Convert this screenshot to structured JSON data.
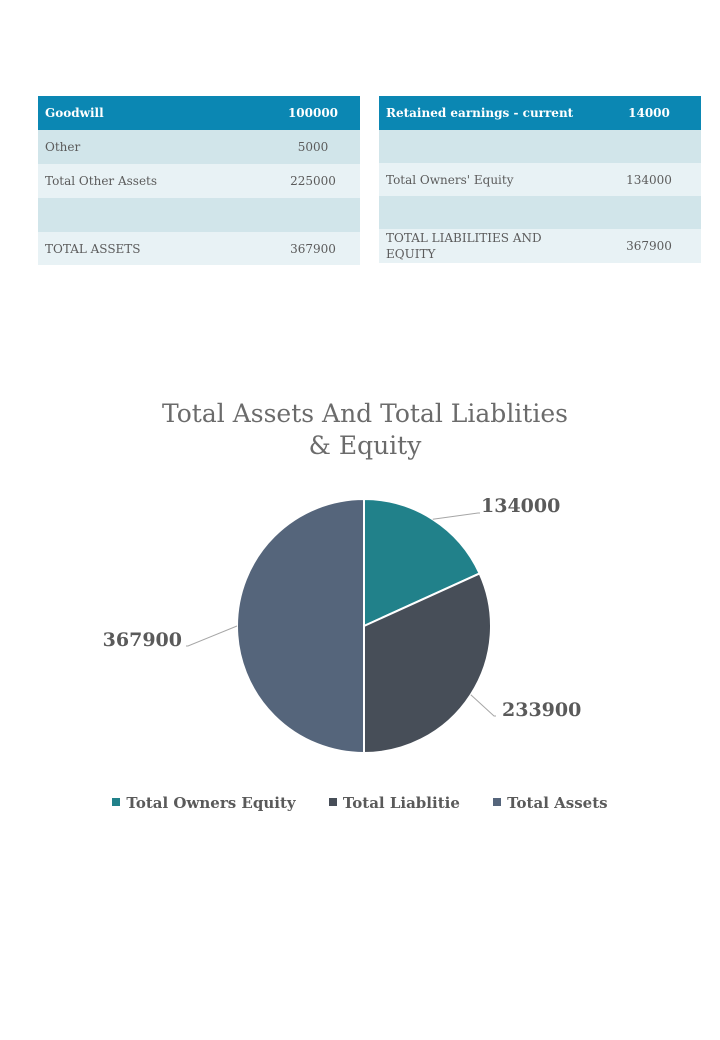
{
  "left_table": {
    "header": {
      "label": "Goodwill",
      "value": "100000"
    },
    "rows": [
      {
        "label": "Other",
        "value": "5000"
      },
      {
        "label": "Total Other Assets",
        "value": "225000"
      },
      {
        "label": "",
        "value": ""
      },
      {
        "label": "TOTAL ASSETS",
        "value": "367900"
      }
    ]
  },
  "right_table": {
    "header": {
      "label": "Retained earnings - current",
      "value": "14000"
    },
    "rows": [
      {
        "label": "",
        "value": ""
      },
      {
        "label": "Total Owners' Equity",
        "value": "134000"
      },
      {
        "label": "",
        "value": ""
      },
      {
        "label": "TOTAL LIABILITIES AND EQUITY",
        "value": "367900"
      }
    ]
  },
  "chart_data": {
    "type": "pie",
    "title": "Total Assets And Total Liablities & Equity",
    "categories": [
      "Total Owners Equity",
      "Total Liablitie",
      "Total Assets"
    ],
    "values": [
      134000,
      233900,
      367900
    ],
    "data_labels": [
      "134000",
      "233900",
      "367900"
    ],
    "colors": [
      "#21818a",
      "#474e58",
      "#55657b"
    ],
    "legend": "bottom"
  }
}
